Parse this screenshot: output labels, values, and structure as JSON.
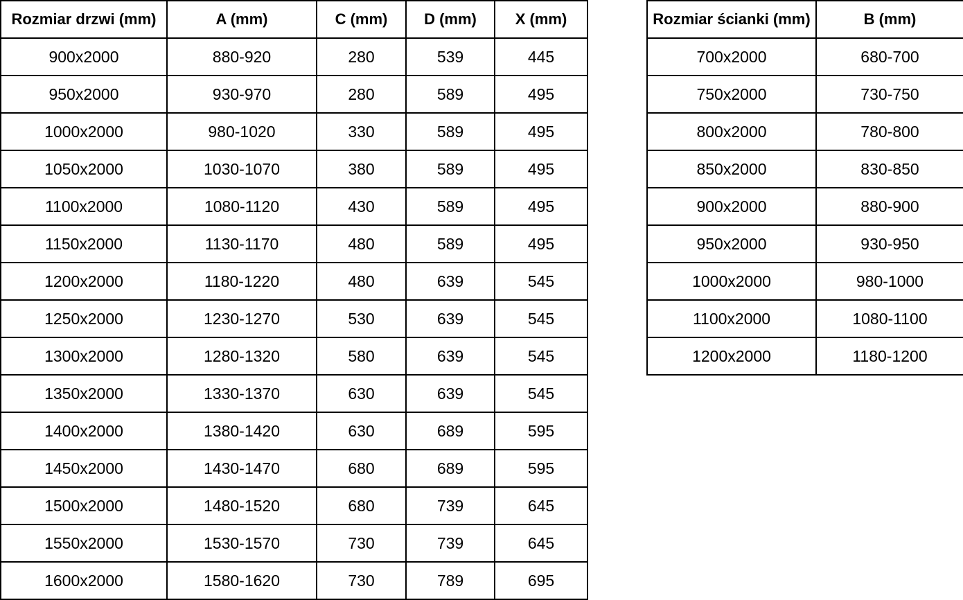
{
  "door_table": {
    "headers": [
      "Rozmiar drzwi (mm)",
      "A (mm)",
      "C (mm)",
      "D (mm)",
      "X (mm)"
    ],
    "rows": [
      [
        "900x2000",
        "880-920",
        "280",
        "539",
        "445"
      ],
      [
        "950x2000",
        "930-970",
        "280",
        "589",
        "495"
      ],
      [
        "1000x2000",
        "980-1020",
        "330",
        "589",
        "495"
      ],
      [
        "1050x2000",
        "1030-1070",
        "380",
        "589",
        "495"
      ],
      [
        "1100x2000",
        "1080-1120",
        "430",
        "589",
        "495"
      ],
      [
        "1150x2000",
        "1130-1170",
        "480",
        "589",
        "495"
      ],
      [
        "1200x2000",
        "1180-1220",
        "480",
        "639",
        "545"
      ],
      [
        "1250x2000",
        "1230-1270",
        "530",
        "639",
        "545"
      ],
      [
        "1300x2000",
        "1280-1320",
        "580",
        "639",
        "545"
      ],
      [
        "1350x2000",
        "1330-1370",
        "630",
        "639",
        "545"
      ],
      [
        "1400x2000",
        "1380-1420",
        "630",
        "689",
        "595"
      ],
      [
        "1450x2000",
        "1430-1470",
        "680",
        "689",
        "595"
      ],
      [
        "1500x2000",
        "1480-1520",
        "680",
        "739",
        "645"
      ],
      [
        "1550x2000",
        "1530-1570",
        "730",
        "739",
        "645"
      ],
      [
        "1600x2000",
        "1580-1620",
        "730",
        "789",
        "695"
      ]
    ]
  },
  "wall_table": {
    "headers": [
      "Rozmiar ścianki (mm)",
      "B (mm)"
    ],
    "rows": [
      [
        "700x2000",
        "680-700"
      ],
      [
        "750x2000",
        "730-750"
      ],
      [
        "800x2000",
        "780-800"
      ],
      [
        "850x2000",
        "830-850"
      ],
      [
        "900x2000",
        "880-900"
      ],
      [
        "950x2000",
        "930-950"
      ],
      [
        "1000x2000",
        "980-1000"
      ],
      [
        "1100x2000",
        "1080-1100"
      ],
      [
        "1200x2000",
        "1180-1200"
      ]
    ]
  },
  "colors": {
    "border": "#000000",
    "text": "#000000",
    "background": "#ffffff"
  }
}
